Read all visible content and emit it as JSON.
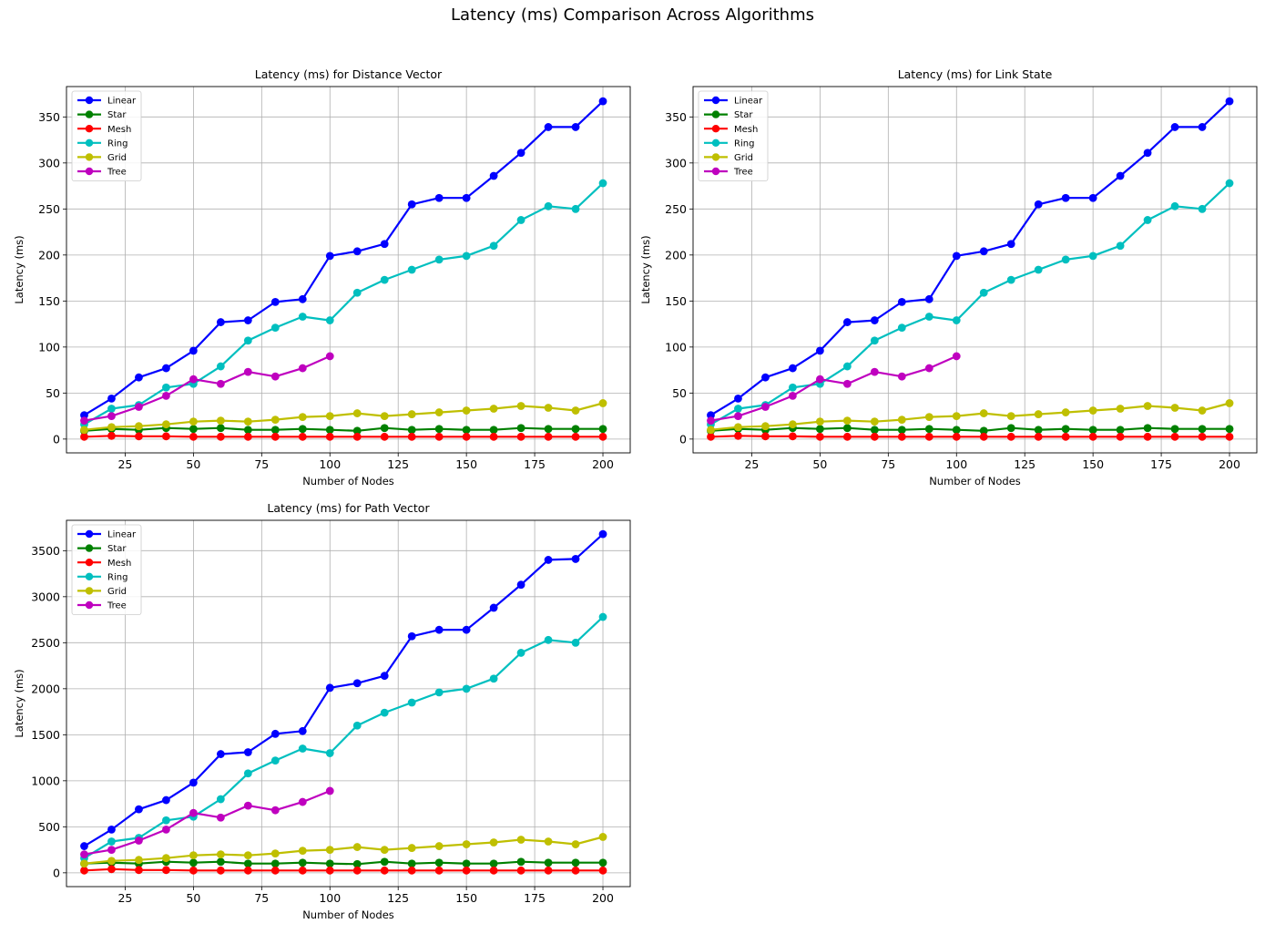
{
  "figure": {
    "title": "Latency (ms) Comparison Across Algorithms"
  },
  "chart_data": [
    {
      "type": "line",
      "title": "Latency (ms) for Distance Vector",
      "xlabel": "Number of Nodes",
      "ylabel": "Latency (ms)",
      "xlim": [
        3.5,
        210
      ],
      "ylim": [
        -15,
        383
      ],
      "xticks": [
        25,
        50,
        75,
        100,
        125,
        150,
        175,
        200
      ],
      "yticks": [
        0,
        50,
        100,
        150,
        200,
        250,
        300,
        350
      ],
      "grid": true,
      "legend_position": "top-left",
      "series": [
        {
          "name": "Linear",
          "color": "#0000ff",
          "x": [
            10,
            20,
            30,
            40,
            50,
            60,
            70,
            80,
            90,
            100,
            110,
            120,
            130,
            140,
            150,
            160,
            170,
            180,
            190,
            200
          ],
          "values": [
            26,
            44,
            67,
            77,
            96,
            127,
            129,
            149,
            152,
            199,
            204,
            212,
            255,
            262,
            262,
            286,
            311,
            339,
            339,
            367
          ]
        },
        {
          "name": "Star",
          "color": "#008000",
          "x": [
            10,
            20,
            30,
            40,
            50,
            60,
            70,
            80,
            90,
            100,
            110,
            120,
            130,
            140,
            150,
            160,
            170,
            180,
            190,
            200
          ],
          "values": [
            9,
            11,
            10,
            12,
            11,
            12,
            10,
            10,
            11,
            10,
            9,
            12,
            10,
            11,
            10,
            10,
            12,
            11,
            11,
            11
          ]
        },
        {
          "name": "Mesh",
          "color": "#ff0000",
          "x": [
            10,
            20,
            30,
            40,
            50,
            60,
            70,
            80,
            90,
            100,
            110,
            120,
            130,
            140,
            150,
            160,
            170,
            180,
            190,
            200
          ],
          "values": [
            2.5,
            3.5,
            3,
            3,
            2.5,
            2.5,
            2.5,
            2.5,
            2.5,
            2.5,
            2.5,
            2.5,
            2.5,
            2.5,
            2.5,
            2.5,
            2.5,
            2.5,
            2.5,
            2.5
          ]
        },
        {
          "name": "Ring",
          "color": "#00bfbf",
          "x": [
            10,
            20,
            30,
            40,
            50,
            60,
            70,
            80,
            90,
            100,
            110,
            120,
            130,
            140,
            150,
            160,
            170,
            180,
            190,
            200
          ],
          "values": [
            16,
            33,
            37,
            56,
            60,
            79,
            107,
            121,
            133,
            129,
            159,
            173,
            184,
            195,
            199,
            210,
            238,
            253,
            250,
            278
          ]
        },
        {
          "name": "Grid",
          "color": "#bfbf00",
          "x": [
            10,
            20,
            30,
            40,
            50,
            60,
            70,
            80,
            90,
            100,
            110,
            120,
            130,
            140,
            150,
            160,
            170,
            180,
            190,
            200
          ],
          "values": [
            10,
            13,
            14,
            16,
            19,
            20,
            19,
            21,
            24,
            25,
            28,
            25,
            27,
            29,
            31,
            33,
            36,
            34,
            31,
            39
          ]
        },
        {
          "name": "Tree",
          "color": "#bf00bf",
          "x": [
            10,
            20,
            30,
            40,
            50,
            60,
            70,
            80,
            90,
            100
          ],
          "values": [
            20,
            25,
            35,
            47,
            65,
            60,
            73,
            68,
            77,
            90
          ]
        }
      ]
    },
    {
      "type": "line",
      "title": "Latency (ms) for Link State",
      "xlabel": "Number of Nodes",
      "ylabel": "Latency (ms)",
      "xlim": [
        3.5,
        210
      ],
      "ylim": [
        -15,
        383
      ],
      "xticks": [
        25,
        50,
        75,
        100,
        125,
        150,
        175,
        200
      ],
      "yticks": [
        0,
        50,
        100,
        150,
        200,
        250,
        300,
        350
      ],
      "grid": true,
      "legend_position": "top-left",
      "series": [
        {
          "name": "Linear",
          "color": "#0000ff",
          "x": [
            10,
            20,
            30,
            40,
            50,
            60,
            70,
            80,
            90,
            100,
            110,
            120,
            130,
            140,
            150,
            160,
            170,
            180,
            190,
            200
          ],
          "values": [
            26,
            44,
            67,
            77,
            96,
            127,
            129,
            149,
            152,
            199,
            204,
            212,
            255,
            262,
            262,
            286,
            311,
            339,
            339,
            367
          ]
        },
        {
          "name": "Star",
          "color": "#008000",
          "x": [
            10,
            20,
            30,
            40,
            50,
            60,
            70,
            80,
            90,
            100,
            110,
            120,
            130,
            140,
            150,
            160,
            170,
            180,
            190,
            200
          ],
          "values": [
            9,
            11,
            10,
            12,
            11,
            12,
            10,
            10,
            11,
            10,
            9,
            12,
            10,
            11,
            10,
            10,
            12,
            11,
            11,
            11
          ]
        },
        {
          "name": "Mesh",
          "color": "#ff0000",
          "x": [
            10,
            20,
            30,
            40,
            50,
            60,
            70,
            80,
            90,
            100,
            110,
            120,
            130,
            140,
            150,
            160,
            170,
            180,
            190,
            200
          ],
          "values": [
            2.5,
            3.5,
            3,
            3,
            2.5,
            2.5,
            2.5,
            2.5,
            2.5,
            2.5,
            2.5,
            2.5,
            2.5,
            2.5,
            2.5,
            2.5,
            2.5,
            2.5,
            2.5,
            2.5
          ]
        },
        {
          "name": "Ring",
          "color": "#00bfbf",
          "x": [
            10,
            20,
            30,
            40,
            50,
            60,
            70,
            80,
            90,
            100,
            110,
            120,
            130,
            140,
            150,
            160,
            170,
            180,
            190,
            200
          ],
          "values": [
            16,
            33,
            37,
            56,
            60,
            79,
            107,
            121,
            133,
            129,
            159,
            173,
            184,
            195,
            199,
            210,
            238,
            253,
            250,
            278
          ]
        },
        {
          "name": "Grid",
          "color": "#bfbf00",
          "x": [
            10,
            20,
            30,
            40,
            50,
            60,
            70,
            80,
            90,
            100,
            110,
            120,
            130,
            140,
            150,
            160,
            170,
            180,
            190,
            200
          ],
          "values": [
            10,
            13,
            14,
            16,
            19,
            20,
            19,
            21,
            24,
            25,
            28,
            25,
            27,
            29,
            31,
            33,
            36,
            34,
            31,
            39
          ]
        },
        {
          "name": "Tree",
          "color": "#bf00bf",
          "x": [
            10,
            20,
            30,
            40,
            50,
            60,
            70,
            80,
            90,
            100
          ],
          "values": [
            20,
            25,
            35,
            47,
            65,
            60,
            73,
            68,
            77,
            90
          ]
        }
      ]
    },
    {
      "type": "line",
      "title": "Latency (ms) for Path Vector",
      "xlabel": "Number of Nodes",
      "ylabel": "Latency (ms)",
      "xlim": [
        3.5,
        210
      ],
      "ylim": [
        -150,
        3830
      ],
      "xticks": [
        25,
        50,
        75,
        100,
        125,
        150,
        175,
        200
      ],
      "yticks": [
        0,
        500,
        1000,
        1500,
        2000,
        2500,
        3000,
        3500
      ],
      "grid": true,
      "legend_position": "top-left",
      "series": [
        {
          "name": "Linear",
          "color": "#0000ff",
          "x": [
            10,
            20,
            30,
            40,
            50,
            60,
            70,
            80,
            90,
            100,
            110,
            120,
            130,
            140,
            150,
            160,
            170,
            180,
            190,
            200
          ],
          "values": [
            290,
            470,
            690,
            790,
            980,
            1290,
            1310,
            1510,
            1540,
            2010,
            2060,
            2140,
            2570,
            2640,
            2640,
            2880,
            3130,
            3400,
            3410,
            3680
          ]
        },
        {
          "name": "Star",
          "color": "#008000",
          "x": [
            10,
            20,
            30,
            40,
            50,
            60,
            70,
            80,
            90,
            100,
            110,
            120,
            130,
            140,
            150,
            160,
            170,
            180,
            190,
            200
          ],
          "values": [
            100,
            110,
            100,
            120,
            110,
            120,
            100,
            100,
            110,
            100,
            95,
            120,
            100,
            110,
            100,
            100,
            120,
            110,
            110,
            110
          ]
        },
        {
          "name": "Mesh",
          "color": "#ff0000",
          "x": [
            10,
            20,
            30,
            40,
            50,
            60,
            70,
            80,
            90,
            100,
            110,
            120,
            130,
            140,
            150,
            160,
            170,
            180,
            190,
            200
          ],
          "values": [
            25,
            40,
            30,
            30,
            25,
            25,
            25,
            25,
            25,
            25,
            25,
            25,
            25,
            25,
            25,
            25,
            25,
            25,
            25,
            25
          ]
        },
        {
          "name": "Ring",
          "color": "#00bfbf",
          "x": [
            10,
            20,
            30,
            40,
            50,
            60,
            70,
            80,
            90,
            100,
            110,
            120,
            130,
            140,
            150,
            160,
            170,
            180,
            190,
            200
          ],
          "values": [
            160,
            340,
            380,
            570,
            610,
            800,
            1080,
            1220,
            1350,
            1300,
            1600,
            1740,
            1850,
            1960,
            2000,
            2110,
            2390,
            2530,
            2500,
            2780
          ]
        },
        {
          "name": "Grid",
          "color": "#bfbf00",
          "x": [
            10,
            20,
            30,
            40,
            50,
            60,
            70,
            80,
            90,
            100,
            110,
            120,
            130,
            140,
            150,
            160,
            170,
            180,
            190,
            200
          ],
          "values": [
            100,
            130,
            140,
            160,
            190,
            200,
            190,
            210,
            240,
            250,
            280,
            250,
            270,
            290,
            310,
            330,
            360,
            340,
            310,
            390
          ]
        },
        {
          "name": "Tree",
          "color": "#bf00bf",
          "x": [
            10,
            20,
            30,
            40,
            50,
            60,
            70,
            80,
            90,
            100
          ],
          "values": [
            200,
            250,
            350,
            470,
            650,
            600,
            730,
            680,
            770,
            890
          ]
        }
      ]
    }
  ]
}
